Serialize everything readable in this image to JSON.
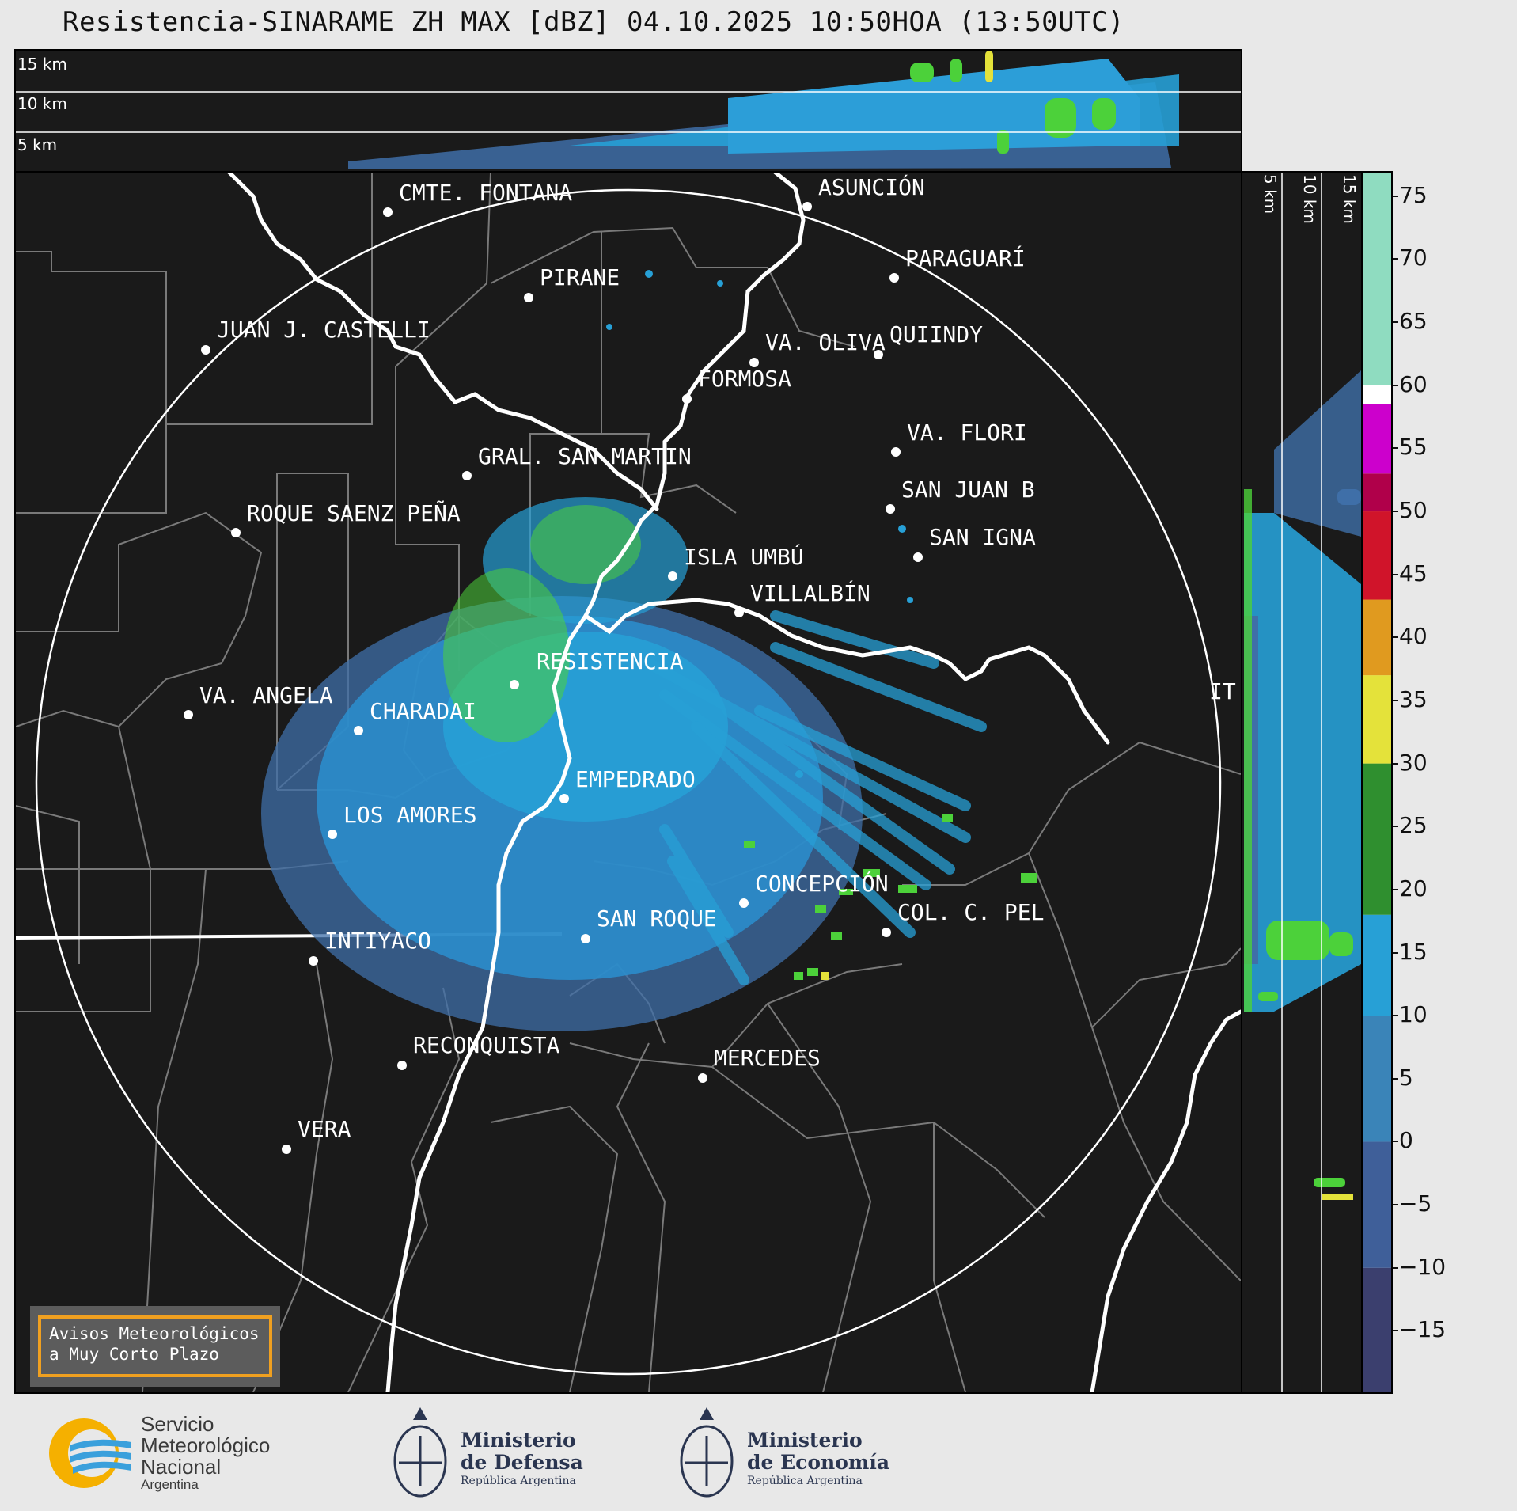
{
  "title": "Resistencia-SINARAME ZH MAX [dBZ] 04.10.2025 10:50HOA (13:50UTC)",
  "top_panel": {
    "height_labels": [
      "15 km",
      "10 km",
      "5 km"
    ]
  },
  "side_panel": {
    "height_labels": [
      "5 km",
      "10 km",
      "15 km"
    ]
  },
  "colorbar": {
    "unit": "dBZ",
    "ticks": [
      "75",
      "70",
      "65",
      "60",
      "55",
      "50",
      "45",
      "40",
      "35",
      "30",
      "25",
      "20",
      "15",
      "10",
      "5",
      "0",
      "−5",
      "−10",
      "−15"
    ],
    "tick_values": [
      75,
      70,
      65,
      60,
      55,
      50,
      45,
      40,
      35,
      30,
      25,
      20,
      15,
      10,
      5,
      0,
      -5,
      -10,
      -15
    ],
    "range": [
      -20,
      77
    ],
    "stops": [
      {
        "from": -20,
        "to": -10,
        "color": "#3b3f6e"
      },
      {
        "from": -10,
        "to": 0,
        "color": "#3f5f99"
      },
      {
        "from": 0,
        "to": 10,
        "color": "#3a84b8"
      },
      {
        "from": 10,
        "to": 18,
        "color": "#27a0d6"
      },
      {
        "from": 18,
        "to": 30,
        "color": "#2f8f2f"
      },
      {
        "from": 30,
        "to": 37,
        "color": "#e4e23a"
      },
      {
        "from": 37,
        "to": 43,
        "color": "#e09a1f"
      },
      {
        "from": 43,
        "to": 50,
        "color": "#d0142a"
      },
      {
        "from": 50,
        "to": 53,
        "color": "#b0004a"
      },
      {
        "from": 53,
        "to": 58.5,
        "color": "#cc00cc"
      },
      {
        "from": 58.5,
        "to": 60,
        "color": "#ffffff"
      },
      {
        "from": 60,
        "to": 77,
        "color": "#8fdcc0"
      }
    ]
  },
  "cities": [
    {
      "name": "CMTE. FONTANA"
    },
    {
      "name": "ASUNCIÓN"
    },
    {
      "name": "PIRANE"
    },
    {
      "name": "PARAGUARÍ"
    },
    {
      "name": "JUAN J. CASTELLI"
    },
    {
      "name": "VA. OLIVA"
    },
    {
      "name": "QUIINDY"
    },
    {
      "name": "FORMOSA"
    },
    {
      "name": "VA. FLORI"
    },
    {
      "name": "GRAL. SAN MARTIN"
    },
    {
      "name": "SAN JUAN B"
    },
    {
      "name": "ROQUE SAENZ PEÑA"
    },
    {
      "name": "SAN IGNA"
    },
    {
      "name": "ISLA UMBÚ"
    },
    {
      "name": "VILLALBÍN"
    },
    {
      "name": "RESISTENCIA"
    },
    {
      "name": "VA. ANGELA"
    },
    {
      "name": "CHARADAI"
    },
    {
      "name": "IT"
    },
    {
      "name": "EMPEDRADO"
    },
    {
      "name": "LOS AMORES"
    },
    {
      "name": "CONCEPCIÓN"
    },
    {
      "name": "SAN ROQUE"
    },
    {
      "name": "COL. C. PEL"
    },
    {
      "name": "INTIYACO"
    },
    {
      "name": "RECONQUISTA"
    },
    {
      "name": "MERCEDES"
    },
    {
      "name": "VERA"
    }
  ],
  "notice": {
    "line1": "Avisos Meteorológicos",
    "line2": "a Muy Corto Plazo"
  },
  "logos": {
    "smn": [
      "Servicio",
      "Meteorológico",
      "Nacional",
      "Argentina"
    ],
    "defensa": [
      "Ministerio",
      "de Defensa",
      "República Argentina"
    ],
    "economia": [
      "Ministerio",
      "de Economía",
      "República Argentina"
    ]
  },
  "colors": {
    "background": "#1a1a1a",
    "border_lines": "#7a7a7a",
    "rivers": "#ffffff",
    "echo_light": "#27a0d6",
    "echo_dark": "#3f6fa8",
    "echo_green": "#4cd13a"
  }
}
